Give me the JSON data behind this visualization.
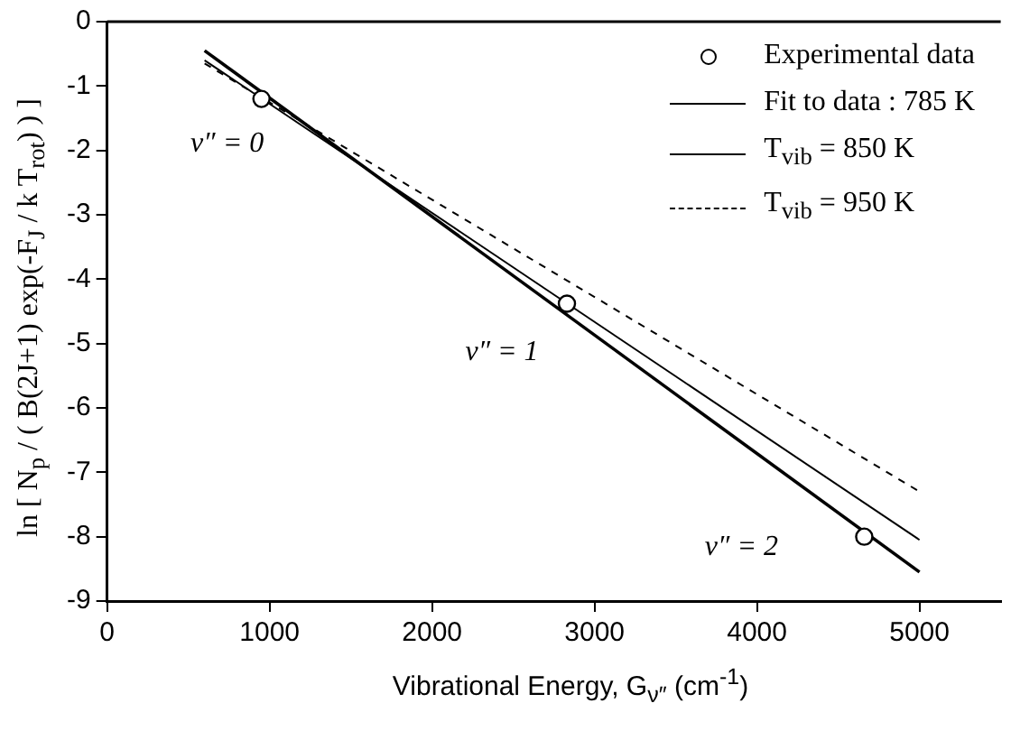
{
  "chart_data": {
    "type": "line",
    "xlabel": "Vibrational Energy, G$_{ν″}$ (cm$^{-1}$)",
    "ylabel": "ln [ N$_{p}$ / ( B(2J+1) exp(-F$_{J}$ / k T$_{rot}$) ) ]",
    "xlim": [
      0,
      5500
    ],
    "xticks": [
      0,
      1000,
      2000,
      3000,
      4000,
      5000
    ],
    "ylim": [
      -9,
      0
    ],
    "yticks": [
      0,
      -1,
      -2,
      -3,
      -4,
      -5,
      -6,
      -7,
      -8,
      -9
    ],
    "legend": "top right",
    "grid": false,
    "series": [
      {
        "name": "Experimental data",
        "type": "scatter",
        "marker": "circle",
        "color": "#000000",
        "x": [
          950,
          2830,
          4660
        ],
        "values": [
          -1.2,
          -4.38,
          -8.0
        ]
      },
      {
        "name": "Fit to data : 785 K",
        "type": "line",
        "line_style": "solid",
        "color": "#000000",
        "x": [
          600,
          5000
        ],
        "values": [
          -0.45,
          -8.55
        ]
      },
      {
        "name": "T$_{vib}$ = 850 K",
        "type": "line",
        "line_style": "solid",
        "color": "#000000",
        "x": [
          600,
          5000
        ],
        "values": [
          -0.6,
          -8.05
        ]
      },
      {
        "name": "T$_{vib}$ = 950 K",
        "type": "line",
        "line_style": "dashed",
        "color": "#000000",
        "x": [
          600,
          5000
        ],
        "values": [
          -0.65,
          -7.3
        ]
      }
    ],
    "annotations": [
      "ν″ = 0",
      "ν″ = 1",
      "ν″ = 2"
    ]
  }
}
